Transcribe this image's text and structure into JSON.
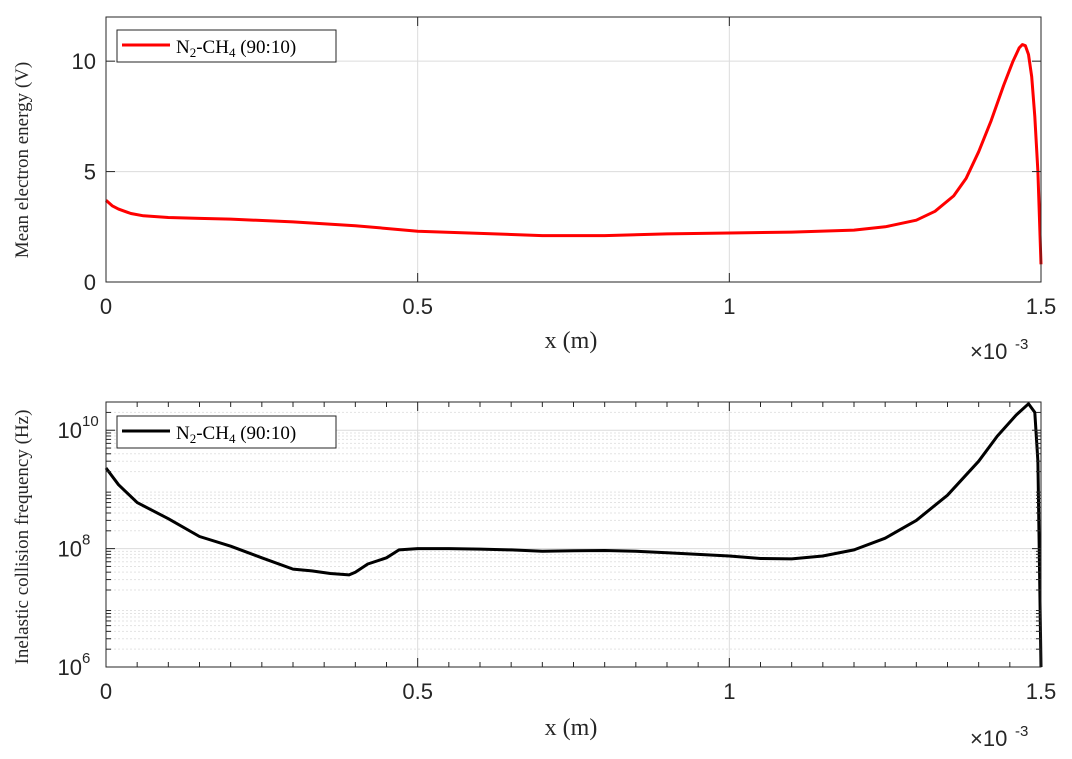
{
  "chart_data": [
    {
      "type": "line",
      "xlabel": "x (m)",
      "ylabel": "Mean electron energy (V)",
      "x_multiplier": "×10",
      "x_multiplier_exp": "-3",
      "xlim": [
        0,
        1.5
      ],
      "ylim": [
        0,
        12
      ],
      "xticks": [
        0,
        0.5,
        1,
        1.5
      ],
      "xtick_labels": [
        "0",
        "0.5",
        "1",
        "1.5"
      ],
      "yticks": [
        0,
        5,
        10
      ],
      "ytick_labels": [
        "0",
        "5",
        "10"
      ],
      "yscale": "linear",
      "grid": true,
      "legend_placement": "top-left",
      "series": [
        {
          "name": "N2-CH4 (90:10)",
          "name_parts": {
            "a": "N",
            "a_sub": "2",
            "b": "-CH",
            "b_sub": "4",
            "c": " (90:10)"
          },
          "color": "#ff0000",
          "x": [
            0,
            0.01,
            0.02,
            0.04,
            0.06,
            0.1,
            0.15,
            0.2,
            0.3,
            0.4,
            0.5,
            0.6,
            0.7,
            0.8,
            0.9,
            1.0,
            1.1,
            1.2,
            1.25,
            1.3,
            1.33,
            1.36,
            1.38,
            1.4,
            1.42,
            1.44,
            1.455,
            1.465,
            1.47,
            1.475,
            1.48,
            1.485,
            1.49,
            1.495,
            1.5
          ],
          "y": [
            3.7,
            3.45,
            3.3,
            3.1,
            3.0,
            2.92,
            2.88,
            2.85,
            2.72,
            2.55,
            2.3,
            2.2,
            2.1,
            2.1,
            2.18,
            2.22,
            2.26,
            2.35,
            2.5,
            2.8,
            3.2,
            3.9,
            4.7,
            5.9,
            7.3,
            8.9,
            10.0,
            10.6,
            10.75,
            10.7,
            10.3,
            9.3,
            7.5,
            5.0,
            0.8
          ]
        }
      ]
    },
    {
      "type": "line",
      "xlabel": "x (m)",
      "ylabel": "Inelastic collision frequency (Hz)",
      "x_multiplier": "×10",
      "x_multiplier_exp": "-3",
      "xlim": [
        0,
        1.5
      ],
      "ylim": [
        1000000,
        30000000000
      ],
      "xticks": [
        0,
        0.5,
        1,
        1.5
      ],
      "xtick_labels": [
        "0",
        "0.5",
        "1",
        "1.5"
      ],
      "ytick_labels": [
        {
          "base": "10",
          "exp": "6"
        },
        {
          "base": "10",
          "exp": "8"
        },
        {
          "base": "10",
          "exp": "10"
        }
      ],
      "yticks": [
        1000000,
        100000000,
        10000000000
      ],
      "yscale": "log",
      "grid": true,
      "legend_placement": "top-left",
      "series": [
        {
          "name": "N2-CH4 (90:10)",
          "name_parts": {
            "a": "N",
            "a_sub": "2",
            "b": "-CH",
            "b_sub": "4",
            "c": " (90:10)"
          },
          "color": "#000000",
          "x": [
            0,
            0.02,
            0.05,
            0.1,
            0.15,
            0.2,
            0.25,
            0.3,
            0.33,
            0.36,
            0.39,
            0.4,
            0.42,
            0.45,
            0.47,
            0.5,
            0.55,
            0.6,
            0.65,
            0.7,
            0.75,
            0.8,
            0.85,
            0.9,
            0.95,
            1.0,
            1.05,
            1.1,
            1.15,
            1.2,
            1.25,
            1.3,
            1.35,
            1.4,
            1.43,
            1.46,
            1.48,
            1.49,
            1.495,
            1.5
          ],
          "y": [
            2300000000,
            1200000000,
            600000000,
            320000000,
            160000000,
            110000000,
            70000000,
            45000000,
            42000000,
            38000000,
            36000000,
            40000000,
            55000000,
            70000000,
            95000000,
            100000000,
            100000000,
            98000000,
            95000000,
            90000000,
            92000000,
            93000000,
            90000000,
            85000000,
            80000000,
            75000000,
            68000000,
            67000000,
            75000000,
            95000000,
            150000000,
            300000000,
            800000000,
            3000000000,
            8000000000,
            18000000000,
            28000000000,
            20000000000,
            3000000000,
            1000000
          ]
        }
      ]
    }
  ]
}
